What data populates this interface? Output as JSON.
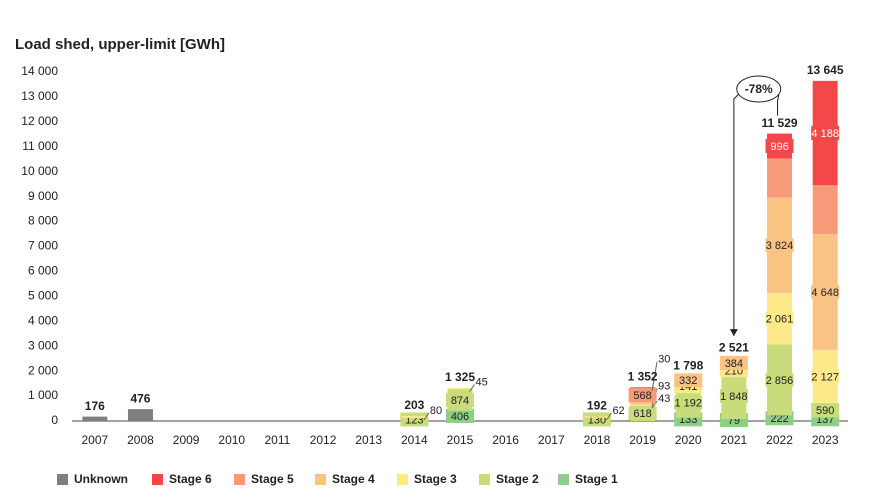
{
  "chart_data": {
    "type": "stacked_bar",
    "title": "Load shed, upper-limit [GWh]",
    "categories": [
      "2007",
      "2008",
      "2009",
      "2010",
      "2011",
      "2012",
      "2013",
      "2014",
      "2015",
      "2016",
      "2017",
      "2018",
      "2019",
      "2020",
      "2021",
      "2022",
      "2023"
    ],
    "series": [
      {
        "name": "Unknown",
        "color": "#7f7f7f",
        "values": [
          176,
          476,
          null,
          null,
          null,
          null,
          null,
          null,
          null,
          null,
          null,
          null,
          null,
          null,
          null,
          null,
          null
        ]
      },
      {
        "name": "Stage 6",
        "color": "#f4474a",
        "values": [
          null,
          null,
          null,
          null,
          null,
          null,
          null,
          null,
          null,
          null,
          null,
          null,
          30,
          null,
          null,
          996,
          4188
        ],
        "value_labels": [
          null,
          null,
          null,
          null,
          null,
          null,
          null,
          null,
          null,
          null,
          null,
          null,
          "30",
          null,
          null,
          "996",
          "4 188"
        ]
      },
      {
        "name": "Stage 5",
        "color": "#f79a7a",
        "values": [
          null,
          null,
          null,
          null,
          null,
          null,
          null,
          null,
          null,
          null,
          null,
          null,
          568,
          null,
          null,
          1570,
          1955
        ],
        "value_labels": [
          null,
          null,
          null,
          null,
          null,
          null,
          null,
          null,
          null,
          null,
          null,
          null,
          "568",
          null,
          null,
          null,
          null
        ]
      },
      {
        "name": "Stage 4",
        "color": "#f9c384",
        "values": [
          null,
          null,
          null,
          null,
          null,
          null,
          null,
          null,
          null,
          null,
          null,
          null,
          93,
          332,
          384,
          3824,
          4648
        ],
        "value_labels": [
          null,
          null,
          null,
          null,
          null,
          null,
          null,
          null,
          null,
          null,
          null,
          null,
          "93",
          "332",
          "384",
          "3 824",
          "4 648"
        ]
      },
      {
        "name": "Stage 3",
        "color": "#fde98a",
        "values": [
          null,
          null,
          null,
          null,
          null,
          null,
          null,
          80,
          45,
          null,
          null,
          62,
          43,
          141,
          210,
          2061,
          2127
        ],
        "value_labels": [
          null,
          null,
          null,
          null,
          null,
          null,
          null,
          "80",
          "45",
          null,
          null,
          "62",
          "43",
          "141",
          "210",
          "2 061",
          "2 127"
        ]
      },
      {
        "name": "Stage 2",
        "color": "#c8dc7c",
        "values": [
          null,
          null,
          null,
          null,
          null,
          null,
          null,
          123,
          874,
          null,
          null,
          130,
          618,
          1192,
          1848,
          2856,
          590
        ],
        "value_labels": [
          null,
          null,
          null,
          null,
          null,
          null,
          null,
          "123",
          "874",
          null,
          null,
          "130",
          "618",
          "1 192",
          "1 848",
          "2 856",
          "590"
        ]
      },
      {
        "name": "Stage 1",
        "color": "#8dcf84",
        "values": [
          null,
          null,
          null,
          null,
          null,
          null,
          null,
          null,
          406,
          null,
          null,
          null,
          null,
          133,
          79,
          222,
          137
        ],
        "value_labels": [
          null,
          null,
          null,
          null,
          null,
          null,
          null,
          null,
          "406",
          null,
          null,
          null,
          null,
          "133",
          "79",
          "222",
          "137"
        ]
      }
    ],
    "totals": [
      176,
      476,
      null,
      null,
      null,
      null,
      null,
      203,
      1325,
      null,
      null,
      192,
      1352,
      1798,
      2521,
      11529,
      13645
    ],
    "total_labels": [
      "176",
      "476",
      null,
      null,
      null,
      null,
      null,
      "203",
      "1 325",
      null,
      null,
      "192",
      "1 352",
      "1 798",
      "2 521",
      "11 529",
      "13 645"
    ],
    "annotation": "-78%",
    "ylim": [
      0,
      14000
    ],
    "yticks": [
      0,
      {
        "value": 1000,
        "label": "1 000"
      },
      {
        "value": 2000,
        "label": "2 000"
      },
      {
        "value": 3000,
        "label": "3 000"
      },
      {
        "value": 4000,
        "label": "4 000"
      },
      {
        "value": 5000,
        "label": "5 000"
      },
      {
        "value": 6000,
        "label": "6 000"
      },
      {
        "value": 7000,
        "label": "7 000"
      },
      {
        "value": 8000,
        "label": "8 000"
      },
      {
        "value": 9000,
        "label": "9 000"
      },
      {
        "value": 10000,
        "label": "10 000"
      },
      {
        "value": 11000,
        "label": "11 000"
      },
      {
        "value": 12000,
        "label": "12 000"
      },
      {
        "value": 13000,
        "label": "13 000"
      },
      {
        "value": 14000,
        "label": "14 000"
      }
    ],
    "grid": false,
    "legend": "bottom"
  }
}
